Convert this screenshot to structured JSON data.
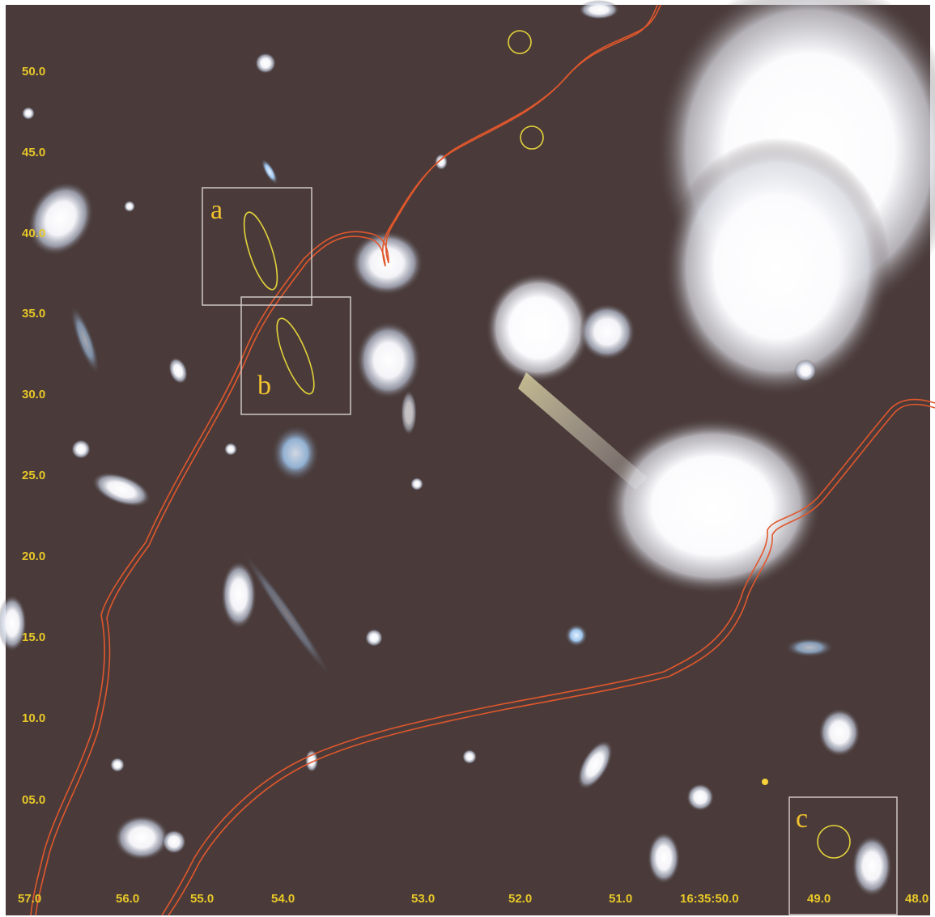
{
  "image": {
    "kind": "astronomical cluster-lensing field",
    "colors": {
      "background": "#4a3b3a",
      "critical_curve": "#e0572c",
      "markers": "#e3d23a",
      "boxes": "#d8d2d0",
      "labels": "#f2c230",
      "ticks": "#e8c828"
    }
  },
  "axes": {
    "y_ticks": [
      "50.0",
      "45.0",
      "40.0",
      "35.0",
      "30.0",
      "25.0",
      "20.0",
      "15.0",
      "10.0",
      "05.0"
    ],
    "x_ticks": [
      "57.0",
      "56.0",
      "55.0",
      "54.0",
      "53.0",
      "52.0",
      "51.0",
      "16:35:50.0",
      "49.0",
      "48.0"
    ]
  },
  "boxes": [
    {
      "label": "a"
    },
    {
      "label": "b"
    },
    {
      "label": "c"
    }
  ]
}
